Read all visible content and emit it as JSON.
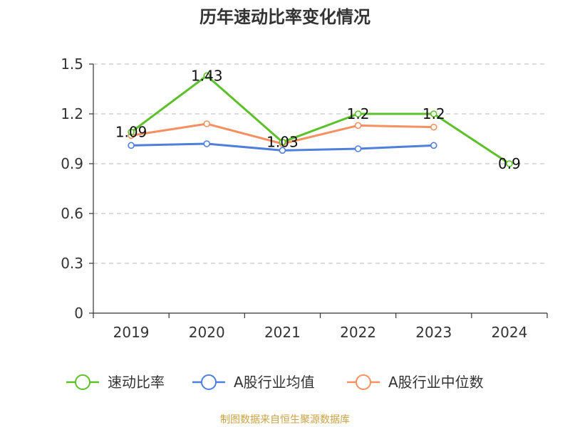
{
  "chart_data": {
    "type": "line",
    "title": "历年速动比率变化情况",
    "categories": [
      "2019",
      "2020",
      "2021",
      "2022",
      "2023",
      "2024"
    ],
    "ylim": [
      0,
      1.5
    ],
    "yticks": [
      "0",
      "0.3",
      "0.6",
      "0.9",
      "1.2",
      "1.5"
    ],
    "ytick_values": [
      0,
      0.3,
      0.6,
      0.9,
      1.2,
      1.5
    ],
    "grid": true,
    "legend_position": "bottom",
    "series": [
      {
        "name": "速动比率",
        "color": "#5cc02b",
        "values": [
          1.09,
          1.43,
          1.03,
          1.2,
          1.2,
          0.9
        ],
        "labels": [
          "1.09",
          "1.43",
          "1.03",
          "1.2",
          "1.2",
          "0.9"
        ]
      },
      {
        "name": "A股行业均值",
        "color": "#4e7fdb",
        "values": [
          1.01,
          1.02,
          0.98,
          0.99,
          1.01,
          null
        ]
      },
      {
        "name": "A股行业中位数",
        "color": "#f59160",
        "values": [
          1.07,
          1.14,
          1.02,
          1.13,
          1.12,
          null
        ]
      }
    ]
  },
  "source": {
    "text": "制图数据来自恒生聚源数据库",
    "color": "#c9a246"
  }
}
